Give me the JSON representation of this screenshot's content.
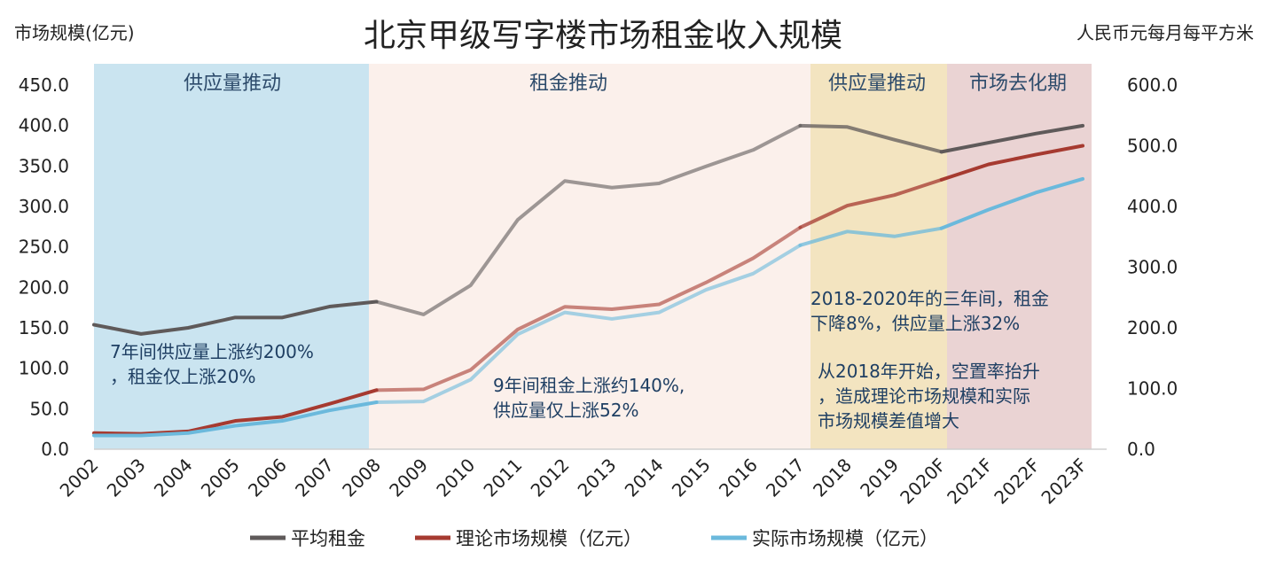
{
  "chart_data": {
    "type": "line",
    "title": "北京甲级写字楼市场租金收入规模",
    "ylabel_left": "市场规模(亿元)",
    "ylabel_right": "人民币元每月每平方米",
    "ylim_left": [
      0,
      450
    ],
    "ylim_right": [
      0,
      600
    ],
    "left_ticks": [
      "0.0",
      "50.0",
      "100.0",
      "150.0",
      "200.0",
      "250.0",
      "300.0",
      "350.0",
      "400.0",
      "450.0"
    ],
    "right_ticks": [
      "0.0",
      "100.0",
      "200.0",
      "300.0",
      "400.0",
      "500.0",
      "600.0"
    ],
    "categories": [
      "2002",
      "2003",
      "2004",
      "2005",
      "2006",
      "2007",
      "2008",
      "2009",
      "2010",
      "2011",
      "2012",
      "2013",
      "2014",
      "2015",
      "2016",
      "2017",
      "2018",
      "2019",
      "2020F",
      "2021F",
      "2022F",
      "2023F"
    ],
    "series": [
      {
        "name": "平均租金",
        "axis": "right",
        "color": "#5f5a5a",
        "values": [
          205,
          190,
          200,
          217,
          217,
          235,
          243,
          222,
          270,
          378,
          442,
          431,
          438,
          466,
          493,
          533,
          531,
          510,
          490,
          505,
          520,
          533
        ]
      },
      {
        "name": "理论市场规模（亿元）",
        "axis": "left",
        "color": "#a63a30",
        "values": [
          20,
          19,
          22,
          35,
          40,
          56,
          73,
          74,
          98,
          148,
          176,
          173,
          179,
          206,
          236,
          274,
          301,
          314,
          333,
          352,
          364,
          375
        ]
      },
      {
        "name": "实际市场规模（亿元）",
        "axis": "left",
        "color": "#6bb9dc",
        "values": [
          17,
          17,
          20,
          29,
          35,
          48,
          58,
          59,
          86,
          142,
          169,
          161,
          169,
          197,
          217,
          252,
          269,
          263,
          273,
          296,
          317,
          334
        ]
      }
    ],
    "phases": [
      {
        "label": "供应量推动",
        "from": "2002",
        "to": "2008",
        "color": "#cae4f0"
      },
      {
        "label": "租金推动",
        "from": "2008",
        "to": "2017",
        "color": "#fbf0eb"
      },
      {
        "label": "供应量推动",
        "from": "2017",
        "to": "2020F",
        "color": "#f3e4c0"
      },
      {
        "label": "市场去化期",
        "from": "2020F",
        "to": "2023F",
        "color": "#ead3d3"
      }
    ],
    "annotations": [
      {
        "lines": [
          "7年间供应量上涨约200%",
          "，租金仅上涨20%"
        ]
      },
      {
        "lines": [
          "9年间租金上涨约140%,",
          "供应量仅上涨52%"
        ]
      },
      {
        "lines": [
          "2018-2020年的三年间，租金",
          "下降8%，供应量上涨32%"
        ]
      },
      {
        "lines": [
          "从2018年开始，空置率抬升",
          "，造成理论市场规模和实际",
          "市场规模差值增大"
        ]
      }
    ],
    "legend_position": "bottom"
  }
}
